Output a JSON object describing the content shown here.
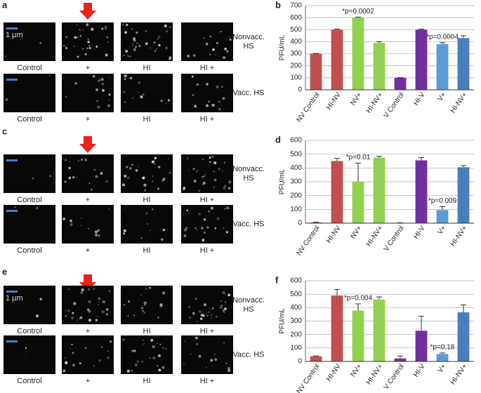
{
  "figure_panels": [
    {
      "letter": "a",
      "column_labels": [
        "Control",
        "+",
        "HI",
        "HI +"
      ],
      "row_labels": [
        "Nonvacc. HS",
        "Vacc. HS"
      ],
      "scale_label": "1 µm"
    },
    {
      "letter": "c",
      "column_labels": [
        "Control",
        "+",
        "HI",
        "HI +"
      ],
      "row_labels": [
        "Nonvacc. HS",
        "Vacc. HS"
      ]
    },
    {
      "letter": "e",
      "column_labels": [
        "Control",
        "+",
        "HI",
        "HI +"
      ],
      "row_labels": [
        "Nonvacc. HS",
        "Vacc. HS"
      ],
      "scale_label": "1 µm"
    }
  ],
  "chart_data": [
    {
      "type": "bar",
      "panel": "b",
      "y_label": "PFU/mL",
      "categories": [
        "NV Control",
        "HI-NV",
        "NV+",
        "HI-NV+",
        "V Control",
        "HI-V",
        "V+",
        "HI-NV+"
      ],
      "values": [
        300,
        500,
        600,
        390,
        100,
        500,
        380,
        430
      ],
      "errors": [
        3,
        5,
        5,
        10,
        2,
        5,
        12,
        20
      ],
      "colors": [
        "#c0504d",
        "#c0504d",
        "#92d050",
        "#92d050",
        "#7030a0",
        "#7030a0",
        "#5b9bd5",
        "#4a7ebb"
      ],
      "ylim": [
        0,
        700
      ],
      "yticks": [
        0,
        100,
        200,
        300,
        400,
        500,
        600,
        700
      ],
      "grid": true,
      "annotations": [
        {
          "text": "*p=0.0002",
          "category": "NV+"
        },
        {
          "text": "*p=0.0004",
          "category": "V+"
        }
      ]
    },
    {
      "type": "bar",
      "panel": "d",
      "y_label": "PFU/mL",
      "categories": [
        "NV Control",
        "HI-NV",
        "NV+",
        "HI-NV+",
        "V Control",
        "HI-V",
        "V+",
        "HI-NV+"
      ],
      "values": [
        5,
        450,
        300,
        475,
        2,
        455,
        95,
        405
      ],
      "errors": [
        2,
        20,
        135,
        10,
        1,
        20,
        25,
        12
      ],
      "colors": [
        "#c0504d",
        "#c0504d",
        "#92d050",
        "#92d050",
        "#7030a0",
        "#7030a0",
        "#5b9bd5",
        "#4a7ebb"
      ],
      "ylim": [
        0,
        600
      ],
      "yticks": [
        0,
        100,
        200,
        300,
        400,
        500,
        600
      ],
      "grid": true,
      "annotations": [
        {
          "text": "*p=0.01",
          "category": "NV+"
        },
        {
          "text": "*p=0.009",
          "category": "V+"
        }
      ]
    },
    {
      "type": "bar",
      "panel": "f",
      "y_label": "PFU/mL",
      "categories": [
        "NV Control",
        "HI-NV",
        "NV+",
        "HI-NV+",
        "V Control",
        "HI-V",
        "V+",
        "HI-NV+"
      ],
      "values": [
        38,
        490,
        378,
        460,
        22,
        228,
        55,
        365
      ],
      "errors": [
        3,
        45,
        50,
        20,
        18,
        108,
        8,
        55
      ],
      "colors": [
        "#c0504d",
        "#c0504d",
        "#92d050",
        "#92d050",
        "#7030a0",
        "#7030a0",
        "#5b9bd5",
        "#4a7ebb"
      ],
      "ylim": [
        0,
        600
      ],
      "yticks": [
        0,
        100,
        200,
        300,
        400,
        500,
        600
      ],
      "grid": true,
      "annotations": [
        {
          "text": "*p=0.004",
          "category": "NV+"
        },
        {
          "text": "*p=0.18",
          "category": "V+"
        }
      ]
    }
  ]
}
